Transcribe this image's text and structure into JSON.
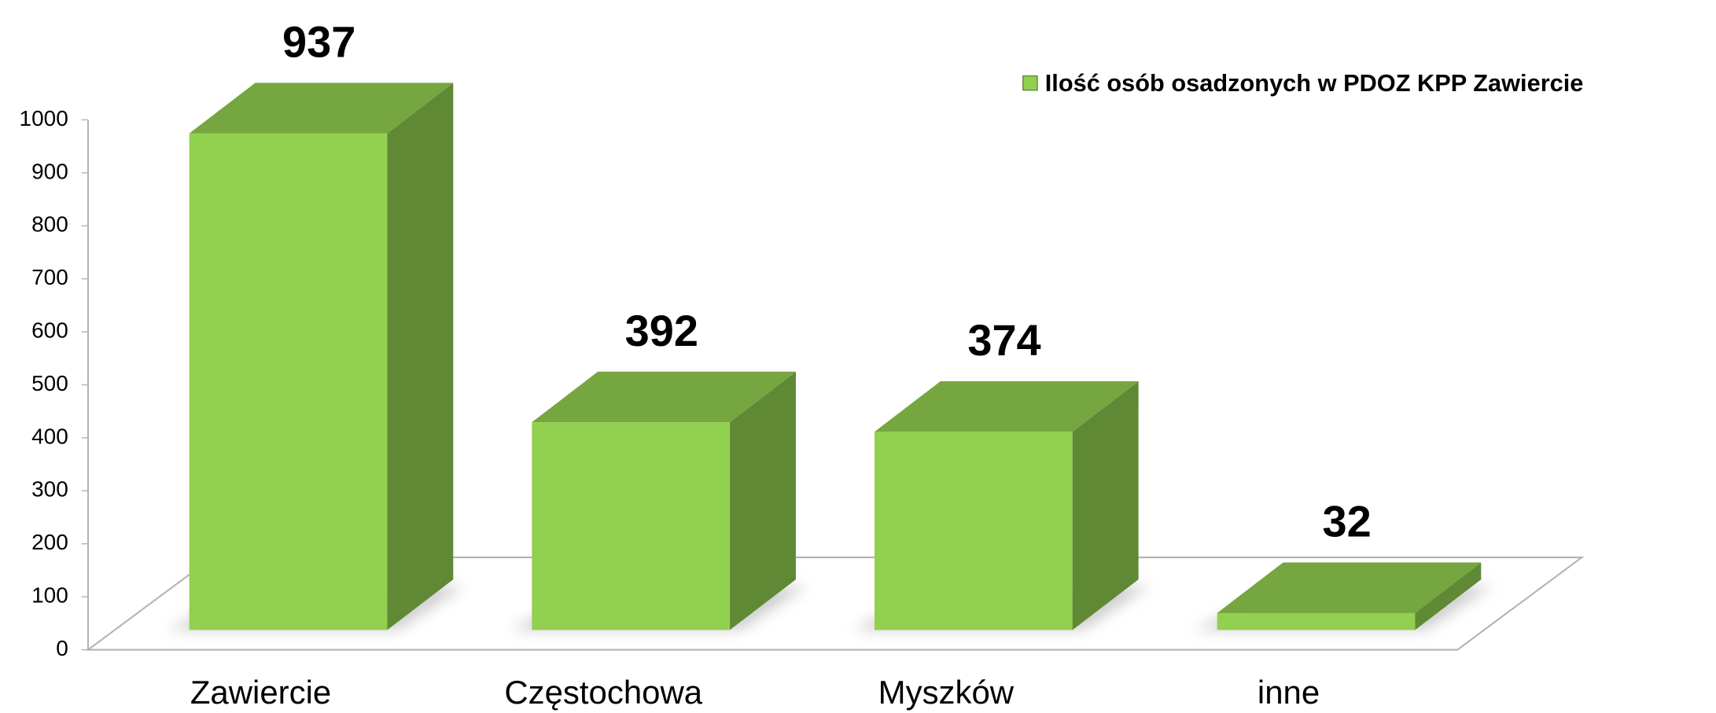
{
  "chart_data": {
    "type": "bar3d",
    "categories": [
      "Zawiercie",
      "Częstochowa",
      "Myszków",
      "inne"
    ],
    "series": [
      {
        "name": "Ilość osób osadzonych w PDOZ KPP Zawiercie",
        "color": "#92d050",
        "values": [
          937,
          392,
          374,
          32
        ]
      }
    ],
    "ylim": [
      0,
      1000
    ],
    "yticks": [
      0,
      100,
      200,
      300,
      400,
      500,
      600,
      700,
      800,
      900,
      1000
    ],
    "legend": "top-right"
  }
}
